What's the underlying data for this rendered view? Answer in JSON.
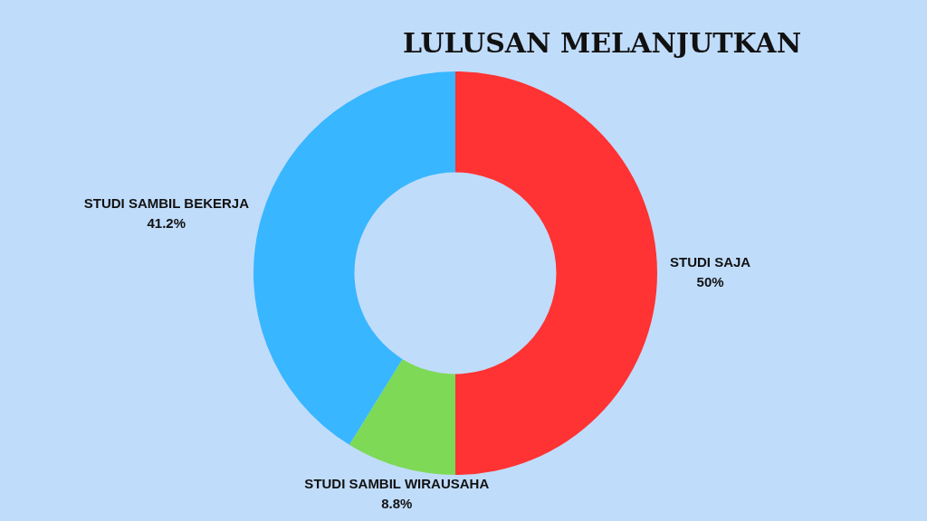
{
  "chart_data": {
    "type": "donut",
    "title": "LULUSAN MELANJUTKAN",
    "categories": [
      "STUDI SAJA",
      "STUDI SAMBIL WIRAUSAHA",
      "STUDI SAMBIL BEKERJA"
    ],
    "values": [
      50,
      8.8,
      41.2
    ],
    "value_labels": [
      "50%",
      "8.8%",
      "41.2%"
    ],
    "colors": [
      "#ff3333",
      "#7ed957",
      "#38b6ff"
    ],
    "legend": false
  }
}
